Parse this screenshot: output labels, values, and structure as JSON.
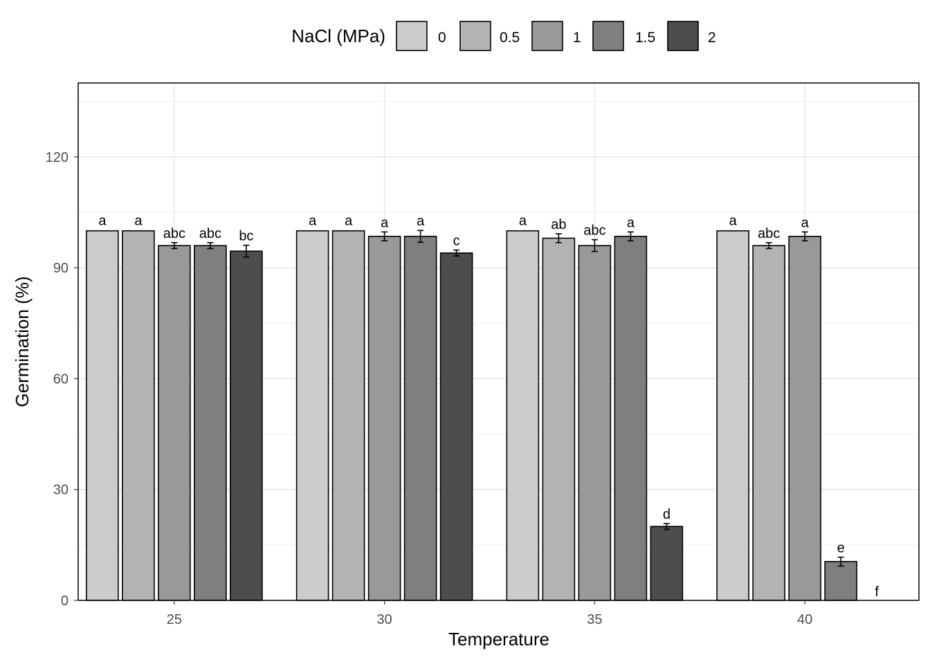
{
  "chart_data": {
    "type": "bar",
    "title": "",
    "xlabel": "Temperature",
    "ylabel": "Germination (%)",
    "ylim": [
      0,
      140
    ],
    "yticks": [
      0,
      30,
      60,
      90,
      120
    ],
    "grid": true,
    "legend": {
      "title": "NaCl (MPa)",
      "placement": "top",
      "entries": [
        "0",
        "0.5",
        "1",
        "1.5",
        "2"
      ]
    },
    "categories": [
      "25",
      "30",
      "35",
      "40"
    ],
    "series": [
      {
        "name": "0",
        "color": "#cccccc",
        "values": [
          100,
          100,
          100,
          100
        ],
        "errors": [
          0,
          0,
          0,
          0
        ],
        "labels": [
          "a",
          "a",
          "a",
          "a"
        ]
      },
      {
        "name": "0.5",
        "color": "#b3b3b3",
        "values": [
          100,
          100,
          98,
          96
        ],
        "errors": [
          0,
          0,
          1.2,
          0.8
        ],
        "labels": [
          "a",
          "a",
          "ab",
          "abc"
        ]
      },
      {
        "name": "1",
        "color": "#999999",
        "values": [
          96,
          98.5,
          96,
          98.5
        ],
        "errors": [
          0.8,
          1.2,
          1.6,
          1.2
        ],
        "labels": [
          "abc",
          "a",
          "abc",
          "a"
        ]
      },
      {
        "name": "1.5",
        "color": "#7f7f7f",
        "values": [
          96,
          98.5,
          98.5,
          10.5
        ],
        "errors": [
          0.8,
          1.6,
          1.2,
          1.2
        ],
        "labels": [
          "abc",
          "a",
          "a",
          "e"
        ]
      },
      {
        "name": "2",
        "color": "#4d4d4d",
        "values": [
          94.5,
          94,
          20,
          0
        ],
        "errors": [
          1.6,
          0.8,
          0.8,
          0
        ],
        "labels": [
          "bc",
          "c",
          "d",
          "f"
        ]
      }
    ]
  }
}
